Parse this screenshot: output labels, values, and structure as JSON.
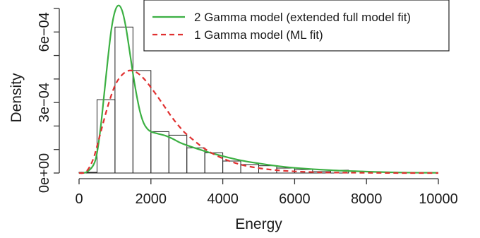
{
  "chart_data": {
    "type": "bar",
    "title": "",
    "xlabel": "Energy",
    "ylabel": "Density",
    "xlim": [
      0,
      10000
    ],
    "ylim": [
      0,
      0.0007
    ],
    "x_ticks": [
      0,
      2000,
      4000,
      6000,
      8000,
      10000
    ],
    "x_tick_labels": [
      "0",
      "2000",
      "4000",
      "6000",
      "8000",
      "10000"
    ],
    "y_ticks": [
      0,
      0.0003,
      0.0006
    ],
    "y_tick_labels": [
      "0e+00",
      "3e−04",
      "6e−04"
    ],
    "y_minor_ticks": [
      0.0001,
      0.0002,
      0.0004,
      0.0005,
      0.0007
    ],
    "histogram": {
      "bin_width": 500,
      "bin_starts": [
        0,
        500,
        1000,
        1500,
        2000,
        2500,
        3000,
        3500,
        4000,
        4500,
        5000,
        5500,
        6000,
        6500,
        7000
      ],
      "density": [
        3e-06,
        0.000312,
        0.000621,
        0.000436,
        0.000176,
        0.000161,
        0.000107,
        8.6e-05,
        5.1e-05,
        3.6e-05,
        3.1e-05,
        2.1e-05,
        1.5e-05,
        6e-06,
        1.2e-05
      ]
    },
    "series": [
      {
        "name": "2 Gamma model (extended full model fit)",
        "style": "solid",
        "color": "#3cb043",
        "x": [
          0,
          200,
          400,
          500,
          600,
          700,
          800,
          900,
          1000,
          1100,
          1200,
          1300,
          1400,
          1500,
          1600,
          1700,
          1800,
          1900,
          2000,
          2100,
          2200,
          2400,
          2600,
          2800,
          3000,
          3500,
          4000,
          4500,
          5000,
          5500,
          6000,
          7000,
          8000,
          9000,
          10000
        ],
        "y": [
          0.0,
          3.5e-06,
          3.4e-05,
          8.6e-05,
          0.000193,
          0.000337,
          0.000483,
          0.000612,
          0.000688,
          0.000713,
          0.00069,
          0.000623,
          0.000526,
          0.000423,
          0.000333,
          0.000259,
          0.000212,
          0.000188,
          0.000176,
          0.000171,
          0.000167,
          0.000159,
          0.000146,
          0.00013,
          0.000118,
          9.3e-05,
          7.2e-05,
          5.4e-05,
          4.1e-05,
          3e-05,
          2.2e-05,
          1.2e-05,
          6e-06,
          2e-06,
          1e-06
        ]
      },
      {
        "name": "1 Gamma model (ML fit)",
        "style": "dashed",
        "color": "#e03030",
        "x": [
          0,
          200,
          400,
          600,
          800,
          1000,
          1200,
          1400,
          1600,
          1800,
          2000,
          2200,
          2400,
          2600,
          2800,
          3000,
          3500,
          4000,
          4500,
          5000,
          5500,
          6000,
          6500,
          7000,
          8000,
          9000,
          10000
        ],
        "y": [
          0.0,
          6e-06,
          6.2e-05,
          0.000172,
          0.000284,
          0.000372,
          0.000418,
          0.000436,
          0.000428,
          0.000402,
          0.000364,
          0.000322,
          0.000278,
          0.000234,
          0.000196,
          0.000164,
          0.000103,
          6.2e-05,
          3.6e-05,
          2.1e-05,
          1.2e-05,
          7e-06,
          4e-06,
          2e-06,
          1e-06,
          0.0,
          0.0
        ]
      }
    ],
    "legend": {
      "position": "top-right",
      "entries": [
        {
          "label": "2 Gamma model (extended full model fit)",
          "color": "#3cb043",
          "style": "solid"
        },
        {
          "label": "1 Gamma model (ML fit)",
          "color": "#e03030",
          "style": "dashed"
        }
      ]
    },
    "grid": false
  }
}
